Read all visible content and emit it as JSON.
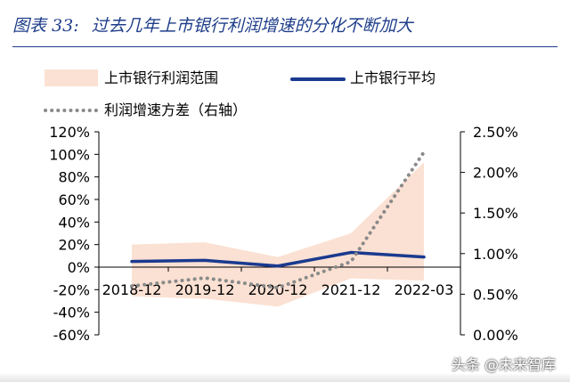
{
  "figure": {
    "label": "图表 33:",
    "title": "过去几年上市银行利润增速的分化不断加大"
  },
  "watermark": "头条 @未来智库",
  "colors": {
    "title": "#1f3e8a",
    "range_fill": "#fbe1d3",
    "average_line": "#1a3a8f",
    "variance_dots": "#8a8a8a",
    "axis": "#000000"
  },
  "chart_data": {
    "type": "line",
    "categories": [
      "2018-12",
      "2019-12",
      "2020-12",
      "2021-12",
      "2022-03"
    ],
    "y_left": {
      "ylim": [
        -60,
        120
      ],
      "ticks": [
        120,
        100,
        80,
        60,
        40,
        20,
        0,
        -20,
        -40,
        -60
      ],
      "tick_labels": [
        "120%",
        "100%",
        "80%",
        "60%",
        "40%",
        "20%",
        "0%",
        "-20%",
        "-40%",
        "-60%"
      ]
    },
    "y_right": {
      "ylim": [
        0,
        2.5
      ],
      "ticks": [
        2.5,
        2.0,
        1.5,
        1.0,
        0.5,
        0.0
      ],
      "tick_labels": [
        "2.50%",
        "2.00%",
        "1.50%",
        "1.00%",
        "0.50%",
        "0.00%"
      ]
    },
    "series": [
      {
        "name": "上市银行利润范围",
        "kind": "area-range",
        "axis": "left",
        "upper": [
          20,
          22,
          9,
          30,
          93
        ],
        "lower": [
          -26,
          -28,
          -35,
          -10,
          -12
        ]
      },
      {
        "name": "上市银行平均",
        "kind": "line",
        "axis": "left",
        "values": [
          5,
          6,
          1,
          13,
          9
        ]
      },
      {
        "name": "利润增速方差（右轴）",
        "kind": "dotted-line",
        "axis": "right",
        "values": [
          0.6,
          0.7,
          0.58,
          0.9,
          2.25
        ]
      }
    ],
    "legend": {
      "placement": "top",
      "entries": [
        "上市银行利润范围",
        "上市银行平均",
        "利润增速方差（右轴）"
      ]
    },
    "grid": false
  }
}
